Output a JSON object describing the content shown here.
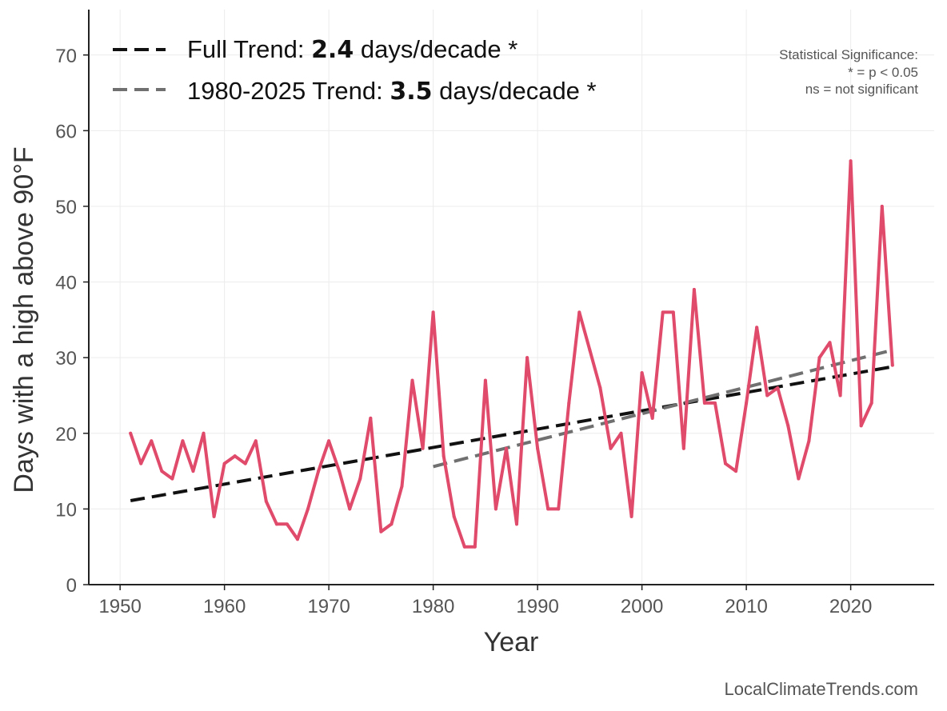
{
  "chart_data": {
    "type": "line",
    "xlabel": "Year",
    "ylabel": "Days with a high above 90°F",
    "xlim": [
      1947,
      2028
    ],
    "ylim": [
      0,
      76
    ],
    "x_ticks": [
      1950,
      1960,
      1970,
      1980,
      1990,
      2000,
      2010,
      2020
    ],
    "y_ticks": [
      0,
      10,
      20,
      30,
      40,
      50,
      60,
      70
    ],
    "grid": true,
    "series": [
      {
        "color": "#e04a6b",
        "x": [
          1951,
          1952,
          1953,
          1954,
          1955,
          1956,
          1957,
          1958,
          1959,
          1960,
          1961,
          1962,
          1963,
          1964,
          1965,
          1966,
          1967,
          1968,
          1969,
          1970,
          1971,
          1972,
          1973,
          1974,
          1975,
          1976,
          1977,
          1978,
          1979,
          1980,
          1981,
          1982,
          1983,
          1984,
          1985,
          1986,
          1987,
          1988,
          1989,
          1990,
          1991,
          1992,
          1993,
          1994,
          1995,
          1996,
          1997,
          1998,
          1999,
          2000,
          2001,
          2002,
          2003,
          2004,
          2005,
          2006,
          2007,
          2008,
          2009,
          2010,
          2011,
          2012,
          2013,
          2014,
          2015,
          2016,
          2017,
          2018,
          2019,
          2020,
          2021,
          2022,
          2023,
          2024
        ],
        "values": [
          20,
          16,
          19,
          15,
          14,
          19,
          15,
          20,
          9,
          16,
          17,
          16,
          19,
          11,
          8,
          8,
          6,
          10,
          15,
          19,
          15,
          10,
          14,
          22,
          7,
          8,
          13,
          27,
          18,
          36,
          17,
          9,
          5,
          5,
          27,
          10,
          18,
          8,
          30,
          18,
          10,
          10,
          24,
          36,
          31,
          26,
          18,
          20,
          9,
          28,
          22,
          36,
          36,
          18,
          39,
          24,
          24,
          16,
          15,
          24,
          34,
          25,
          26,
          21,
          14,
          19,
          30,
          32,
          25,
          56,
          21,
          24,
          50,
          29
        ]
      }
    ],
    "trend_lines": [
      {
        "color": "#111111",
        "style": "dashed",
        "x": [
          1951,
          2024
        ],
        "values": [
          11.1,
          28.8
        ]
      },
      {
        "color": "#707070",
        "style": "dashed",
        "x": [
          1980,
          2024
        ],
        "values": [
          15.6,
          31.0
        ]
      }
    ],
    "legend": {
      "position": "top-left",
      "entries": [
        {
          "prefix": "Full Trend: ",
          "value": "2.4",
          "suffix": " days/decade *",
          "color": "#111111"
        },
        {
          "prefix": "1980-2025 Trend: ",
          "value": "3.5",
          "suffix": " days/decade *",
          "color": "#707070"
        }
      ]
    },
    "annotations": {
      "significance_title": "Statistical Significance:",
      "significance_line1": "* = p < 0.05",
      "significance_line2": "ns = not significant"
    },
    "credit": "LocalClimateTrends.com"
  }
}
